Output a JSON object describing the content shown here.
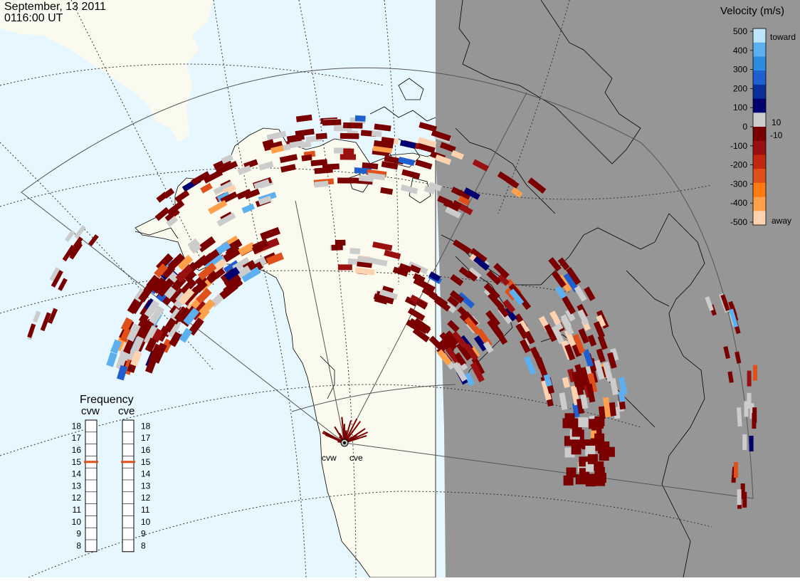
{
  "header": {
    "date": "September, 13 2011",
    "time": "0116:00 UT"
  },
  "colorbar": {
    "title": "Velocity (m/s)",
    "toward_label": "toward",
    "away_label": "away",
    "ticks_left": [
      "500",
      "400",
      "300",
      "200",
      "100",
      "0",
      "-100",
      "-200",
      "-300",
      "-400",
      "-500"
    ],
    "ticks_right": [
      "10",
      "-10"
    ],
    "colors": [
      "#ffd2b0",
      "#ffa04a",
      "#ff7a10",
      "#e0501a",
      "#c02810",
      "#9a1010",
      "#7a0000",
      "#cccccc",
      "#000070",
      "#0a2e9a",
      "#1f5fd0",
      "#2c8ce0",
      "#5cb0ef",
      "#bde5fb"
    ]
  },
  "frequency": {
    "title": "Frequency",
    "left_name": "cvw",
    "right_name": "cve",
    "levels": [
      "18",
      "17",
      "16",
      "15",
      "14",
      "13",
      "12",
      "11",
      "10",
      "9",
      "8"
    ],
    "left_value": 15,
    "right_value": 15,
    "marker_color": "#e0501a"
  },
  "radars": [
    {
      "id": "cvw",
      "label": "cvw"
    },
    {
      "id": "cve",
      "label": "cve"
    }
  ],
  "colors": {
    "ocean": "#e6f7ff",
    "land": "#fafaef",
    "night": "#969696",
    "fov_line": "#555555",
    "grid": "#333333"
  }
}
